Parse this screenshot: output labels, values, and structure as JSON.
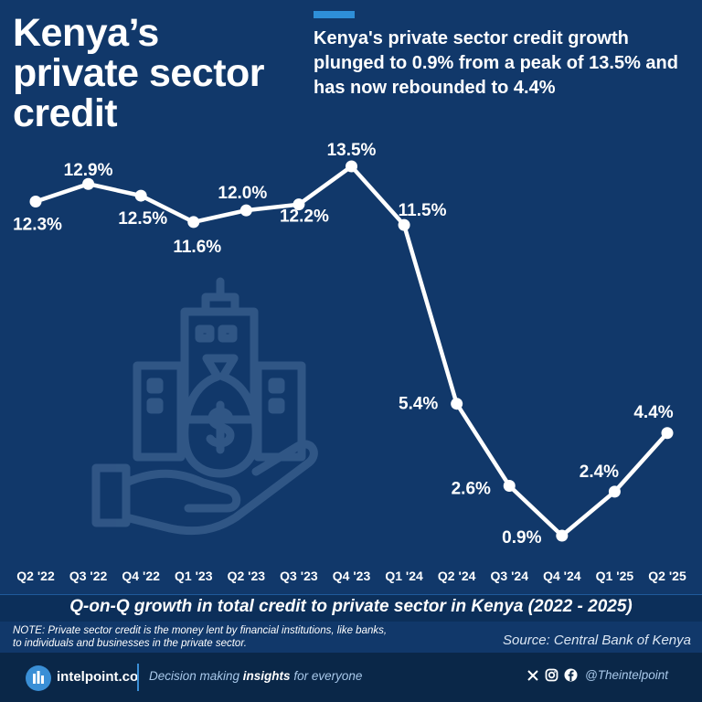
{
  "title": "Kenya’s private sector credit",
  "subtitle": "Kenya's private sector credit growth plunged to 0.9% from a peak of 13.5% and has now rebounded to 4.4%",
  "caption": "Q-on-Q growth in total credit to private sector in Kenya (2022 - 2025)",
  "note": "NOTE: Private sector credit is the money lent by financial institutions, like banks, to individuals and businesses in the private sector.",
  "source": "Source: Central Bank of Kenya",
  "footer": {
    "brand": "intelpoint.co",
    "tagline_start": "Decision making ",
    "tagline_bold": "insights",
    "tagline_end": " for everyone",
    "handle": "@Theintelpoint"
  },
  "colors": {
    "background": "#11386a",
    "accent": "#2e8fd8",
    "line": "#ffffff"
  },
  "chart_data": {
    "type": "line",
    "title": "Q-on-Q growth in total credit to private sector in Kenya (2022 - 2025)",
    "categories": [
      "Q2 '22",
      "Q3 '22",
      "Q4 '22",
      "Q1 '23",
      "Q2 '23",
      "Q3 '23",
      "Q4 '23",
      "Q1 '24",
      "Q2 '24",
      "Q3 '24",
      "Q4 '24",
      "Q1 '25",
      "Q2 '25"
    ],
    "values": [
      12.3,
      12.9,
      12.5,
      11.6,
      12.0,
      12.2,
      13.5,
      11.5,
      5.4,
      2.6,
      0.9,
      2.4,
      4.4
    ],
    "value_labels": [
      "12.3%",
      "12.9%",
      "12.5%",
      "11.6%",
      "12.0%",
      "12.2%",
      "13.5%",
      "11.5%",
      "5.4%",
      "2.6%",
      "0.9%",
      "2.4%",
      "4.4%"
    ],
    "ylim": [
      0.9,
      13.5
    ],
    "xlabel": "",
    "ylabel": "",
    "grid": false,
    "legend": "none"
  }
}
